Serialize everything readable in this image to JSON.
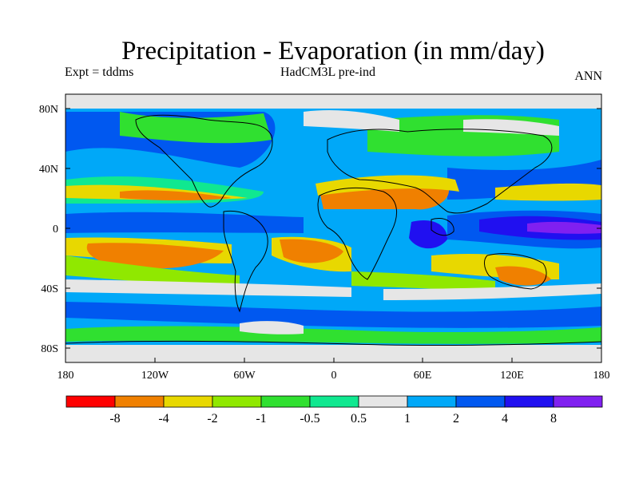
{
  "header": {
    "title": "Precipitation - Evaporation (in mm/day)",
    "experiment": "Expt = tddms",
    "model": "HadCM3L pre-ind",
    "season": "ANN"
  },
  "map": {
    "lat_labels": [
      "80N",
      "40N",
      "0",
      "40S",
      "80S"
    ],
    "lon_labels": [
      "180",
      "120W",
      "60W",
      "0",
      "60E",
      "120E",
      "180"
    ]
  },
  "colorbar": {
    "colors": [
      "#ff0000",
      "#f08000",
      "#e8d800",
      "#90e800",
      "#30e030",
      "#10e890",
      "#e6e6e6",
      "#00a8f8",
      "#0058f0",
      "#2010f0",
      "#8020f0"
    ],
    "labels": [
      "-8",
      "-4",
      "-2",
      "-1",
      "-0.5",
      "0.5",
      "1",
      "2",
      "4",
      "8"
    ]
  }
}
